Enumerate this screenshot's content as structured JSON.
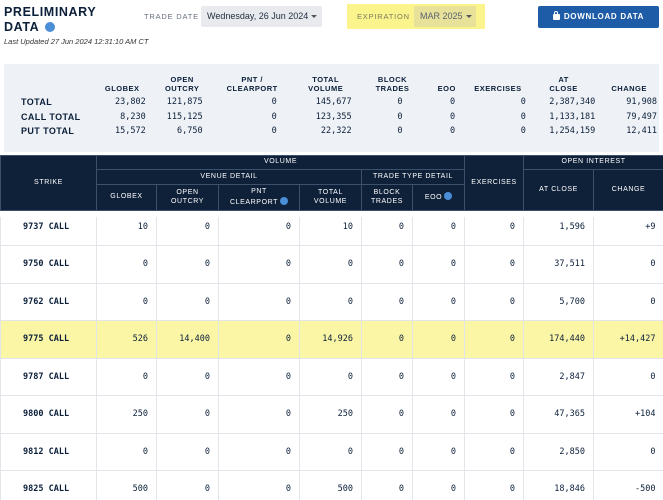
{
  "header": {
    "title_line1": "PRELIMINARY",
    "title_line2": "DATA",
    "last_updated": "Last Updated 27 Jun 2024 12:31:10 AM CT",
    "trade_date_label": "TRADE DATE",
    "trade_date_value": "Wednesday, 26 Jun 2024",
    "expiration_label": "EXPIRATION",
    "expiration_value": "MAR 2025",
    "download_label": "DOWNLOAD DATA",
    "highlight_color": "#fbf38c",
    "accent_color": "#1e5ca8"
  },
  "summary": {
    "columns": [
      "GLOBEX",
      "OPEN OUTCRY",
      "PNT / CLEARPORT",
      "TOTAL VOLUME",
      "BLOCK TRADES",
      "EOO",
      "EXERCISES",
      "AT CLOSE",
      "CHANGE"
    ],
    "rows": [
      {
        "label": "TOTAL",
        "values": [
          "23,802",
          "121,875",
          "0",
          "145,677",
          "0",
          "0",
          "0",
          "2,387,340",
          "91,908"
        ]
      },
      {
        "label": "CALL TOTAL",
        "values": [
          "8,230",
          "115,125",
          "0",
          "123,355",
          "0",
          "0",
          "0",
          "1,133,181",
          "79,497"
        ]
      },
      {
        "label": "PUT TOTAL",
        "values": [
          "15,572",
          "6,750",
          "0",
          "22,322",
          "0",
          "0",
          "0",
          "1,254,159",
          "12,411"
        ]
      }
    ]
  },
  "table": {
    "header": {
      "strike": "STRIKE",
      "volume": "VOLUME",
      "venue_detail": "VENUE DETAIL",
      "trade_type_detail": "TRADE TYPE DETAIL",
      "exercises": "EXERCISES",
      "open_interest": "OPEN INTEREST",
      "globex": "GLOBEX",
      "open_outcry": "OPEN OUTCRY",
      "pnt_clearport": "PNT CLEARPORT",
      "total_volume": "TOTAL VOLUME",
      "block_trades": "BLOCK TRADES",
      "eoo": "EOO",
      "at_close": "AT CLOSE",
      "change": "CHANGE"
    },
    "rows": [
      {
        "strike": "9737 CALL",
        "values": [
          "10",
          "0",
          "0",
          "10",
          "0",
          "0",
          "0",
          "1,596",
          "+9"
        ],
        "change_sign": "pos"
      },
      {
        "strike": "9750 CALL",
        "values": [
          "0",
          "0",
          "0",
          "0",
          "0",
          "0",
          "0",
          "37,511",
          "0"
        ],
        "change_sign": "zero"
      },
      {
        "strike": "9762 CALL",
        "values": [
          "0",
          "0",
          "0",
          "0",
          "0",
          "0",
          "0",
          "5,700",
          "0"
        ],
        "change_sign": "zero"
      },
      {
        "strike": "9775 CALL",
        "values": [
          "526",
          "14,400",
          "0",
          "14,926",
          "0",
          "0",
          "0",
          "174,440",
          "+14,427"
        ],
        "change_sign": "pos",
        "highlighted": true
      },
      {
        "strike": "9787 CALL",
        "values": [
          "0",
          "0",
          "0",
          "0",
          "0",
          "0",
          "0",
          "2,847",
          "0"
        ],
        "change_sign": "zero"
      },
      {
        "strike": "9800 CALL",
        "values": [
          "250",
          "0",
          "0",
          "250",
          "0",
          "0",
          "0",
          "47,365",
          "+104"
        ],
        "change_sign": "pos"
      },
      {
        "strike": "9812 CALL",
        "values": [
          "0",
          "0",
          "0",
          "0",
          "0",
          "0",
          "0",
          "2,850",
          "0"
        ],
        "change_sign": "zero"
      },
      {
        "strike": "9825 CALL",
        "values": [
          "500",
          "0",
          "0",
          "500",
          "0",
          "0",
          "0",
          "18,846",
          "-500"
        ],
        "change_sign": "neg"
      }
    ]
  }
}
